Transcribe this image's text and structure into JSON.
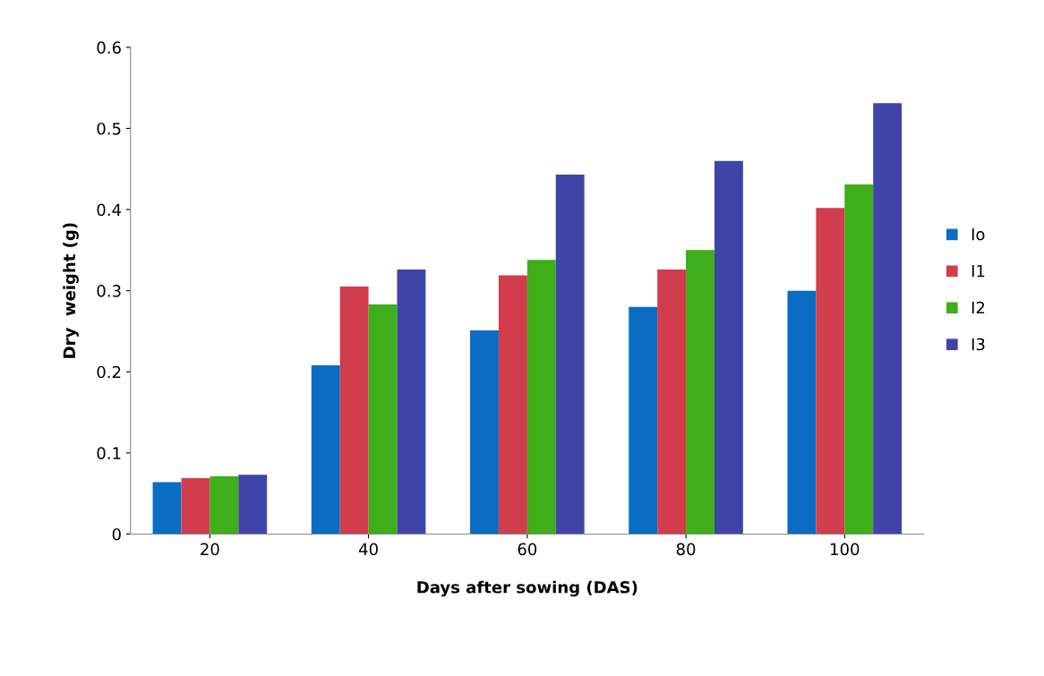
{
  "chart_data": {
    "type": "bar",
    "xlabel": "Days after sowing (DAS)",
    "ylabel": "Dry  weight (g)",
    "categories": [
      "20",
      "40",
      "60",
      "80",
      "100"
    ],
    "series": [
      {
        "name": "Io",
        "color": "#0b6cc4",
        "values": [
          0.064,
          0.208,
          0.251,
          0.28,
          0.3
        ]
      },
      {
        "name": "I1",
        "color": "#d13d4c",
        "values": [
          0.069,
          0.305,
          0.319,
          0.326,
          0.402
        ]
      },
      {
        "name": "I2",
        "color": "#3eae1a",
        "values": [
          0.071,
          0.283,
          0.338,
          0.35,
          0.431
        ]
      },
      {
        "name": "I3",
        "color": "#3f45a8",
        "values": [
          0.073,
          0.326,
          0.443,
          0.46,
          0.531
        ]
      }
    ],
    "ylim": [
      0,
      0.6
    ],
    "yticks": [
      0,
      0.1,
      0.2,
      0.3,
      0.4,
      0.5,
      0.6
    ],
    "grid": false,
    "legend": "right"
  }
}
